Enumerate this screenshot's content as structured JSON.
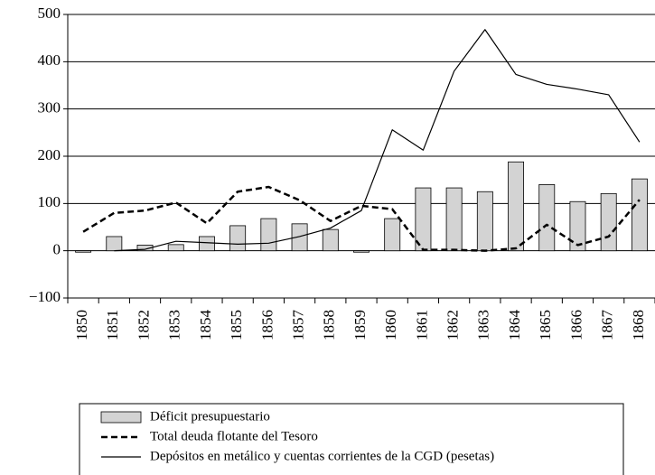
{
  "chart_data": {
    "type": "bar",
    "categories": [
      "1850",
      "1851",
      "1852",
      "1853",
      "1854",
      "1855",
      "1856",
      "1857",
      "1858",
      "1859",
      "1860",
      "1861",
      "1862",
      "1863",
      "1864",
      "1865",
      "1866",
      "1867",
      "1868"
    ],
    "series": [
      {
        "name": "Déficit presupuestario",
        "type": "bar",
        "color": "#d3d3d3",
        "values": [
          -3,
          30,
          12,
          13,
          30,
          53,
          68,
          57,
          45,
          -3,
          68,
          133,
          133,
          125,
          188,
          140,
          104,
          121,
          152
        ]
      },
      {
        "name": "Total deuda flotante del Tesoro",
        "type": "line",
        "dash": "dashed",
        "color": "#000000",
        "values": [
          40,
          80,
          85,
          102,
          58,
          125,
          135,
          107,
          63,
          95,
          88,
          2,
          2,
          0,
          5,
          55,
          12,
          30,
          108
        ]
      },
      {
        "name": "Depósitos en metálico y cuentas corrientes de la CGD (pesetas)",
        "type": "line",
        "dash": "solid",
        "color": "#000000",
        "values": [
          null,
          0,
          3,
          20,
          17,
          14,
          16,
          30,
          48,
          85,
          256,
          213,
          380,
          468,
          373,
          352,
          342,
          330,
          230
        ]
      }
    ],
    "ylim": [
      -100,
      500
    ],
    "yticks": [
      {
        "value": -100,
        "label": "−100"
      },
      0,
      100,
      200,
      300,
      400,
      500
    ],
    "grid": true,
    "legend": "bottom"
  }
}
